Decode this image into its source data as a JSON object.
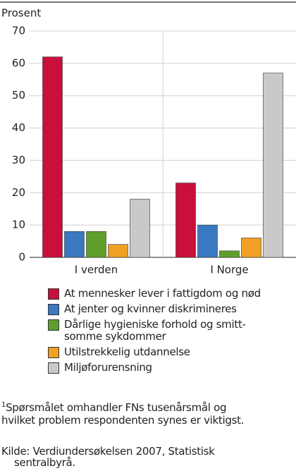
{
  "chart_data": {
    "type": "bar",
    "ylabel": "Prosent",
    "categories": [
      "I verden",
      "I Norge"
    ],
    "series": [
      {
        "name": "At mennesker lever i fattigdom og nød",
        "color": "#c8103a",
        "values": [
          62,
          23
        ]
      },
      {
        "name": "At jenter og kvinner diskrimineres",
        "color": "#3b78c2",
        "values": [
          8,
          10
        ]
      },
      {
        "name": "Dårlige hygieniske forhold og smitt-\nsomme sykdommer",
        "color": "#5f9e2c",
        "values": [
          8,
          2
        ]
      },
      {
        "name": "Utilstrekkelig utdannelse",
        "color": "#f0a024",
        "values": [
          4,
          6
        ]
      },
      {
        "name": "Miljøforurensning",
        "color": "#c9c9c9",
        "values": [
          18,
          57
        ]
      }
    ],
    "ylim": [
      0,
      70
    ],
    "yticks": [
      0,
      10,
      20,
      30,
      40,
      50,
      60,
      70
    ],
    "grid": true,
    "footnote_marker": "1",
    "footnote": "Spørsmålet omhandler FNs tusenårsmål og\nhvilket problem respondenten synes er viktigst.",
    "source": "Kilde: Verdiundersøkelsen 2007, Statistisk\nsentralbyrå."
  }
}
